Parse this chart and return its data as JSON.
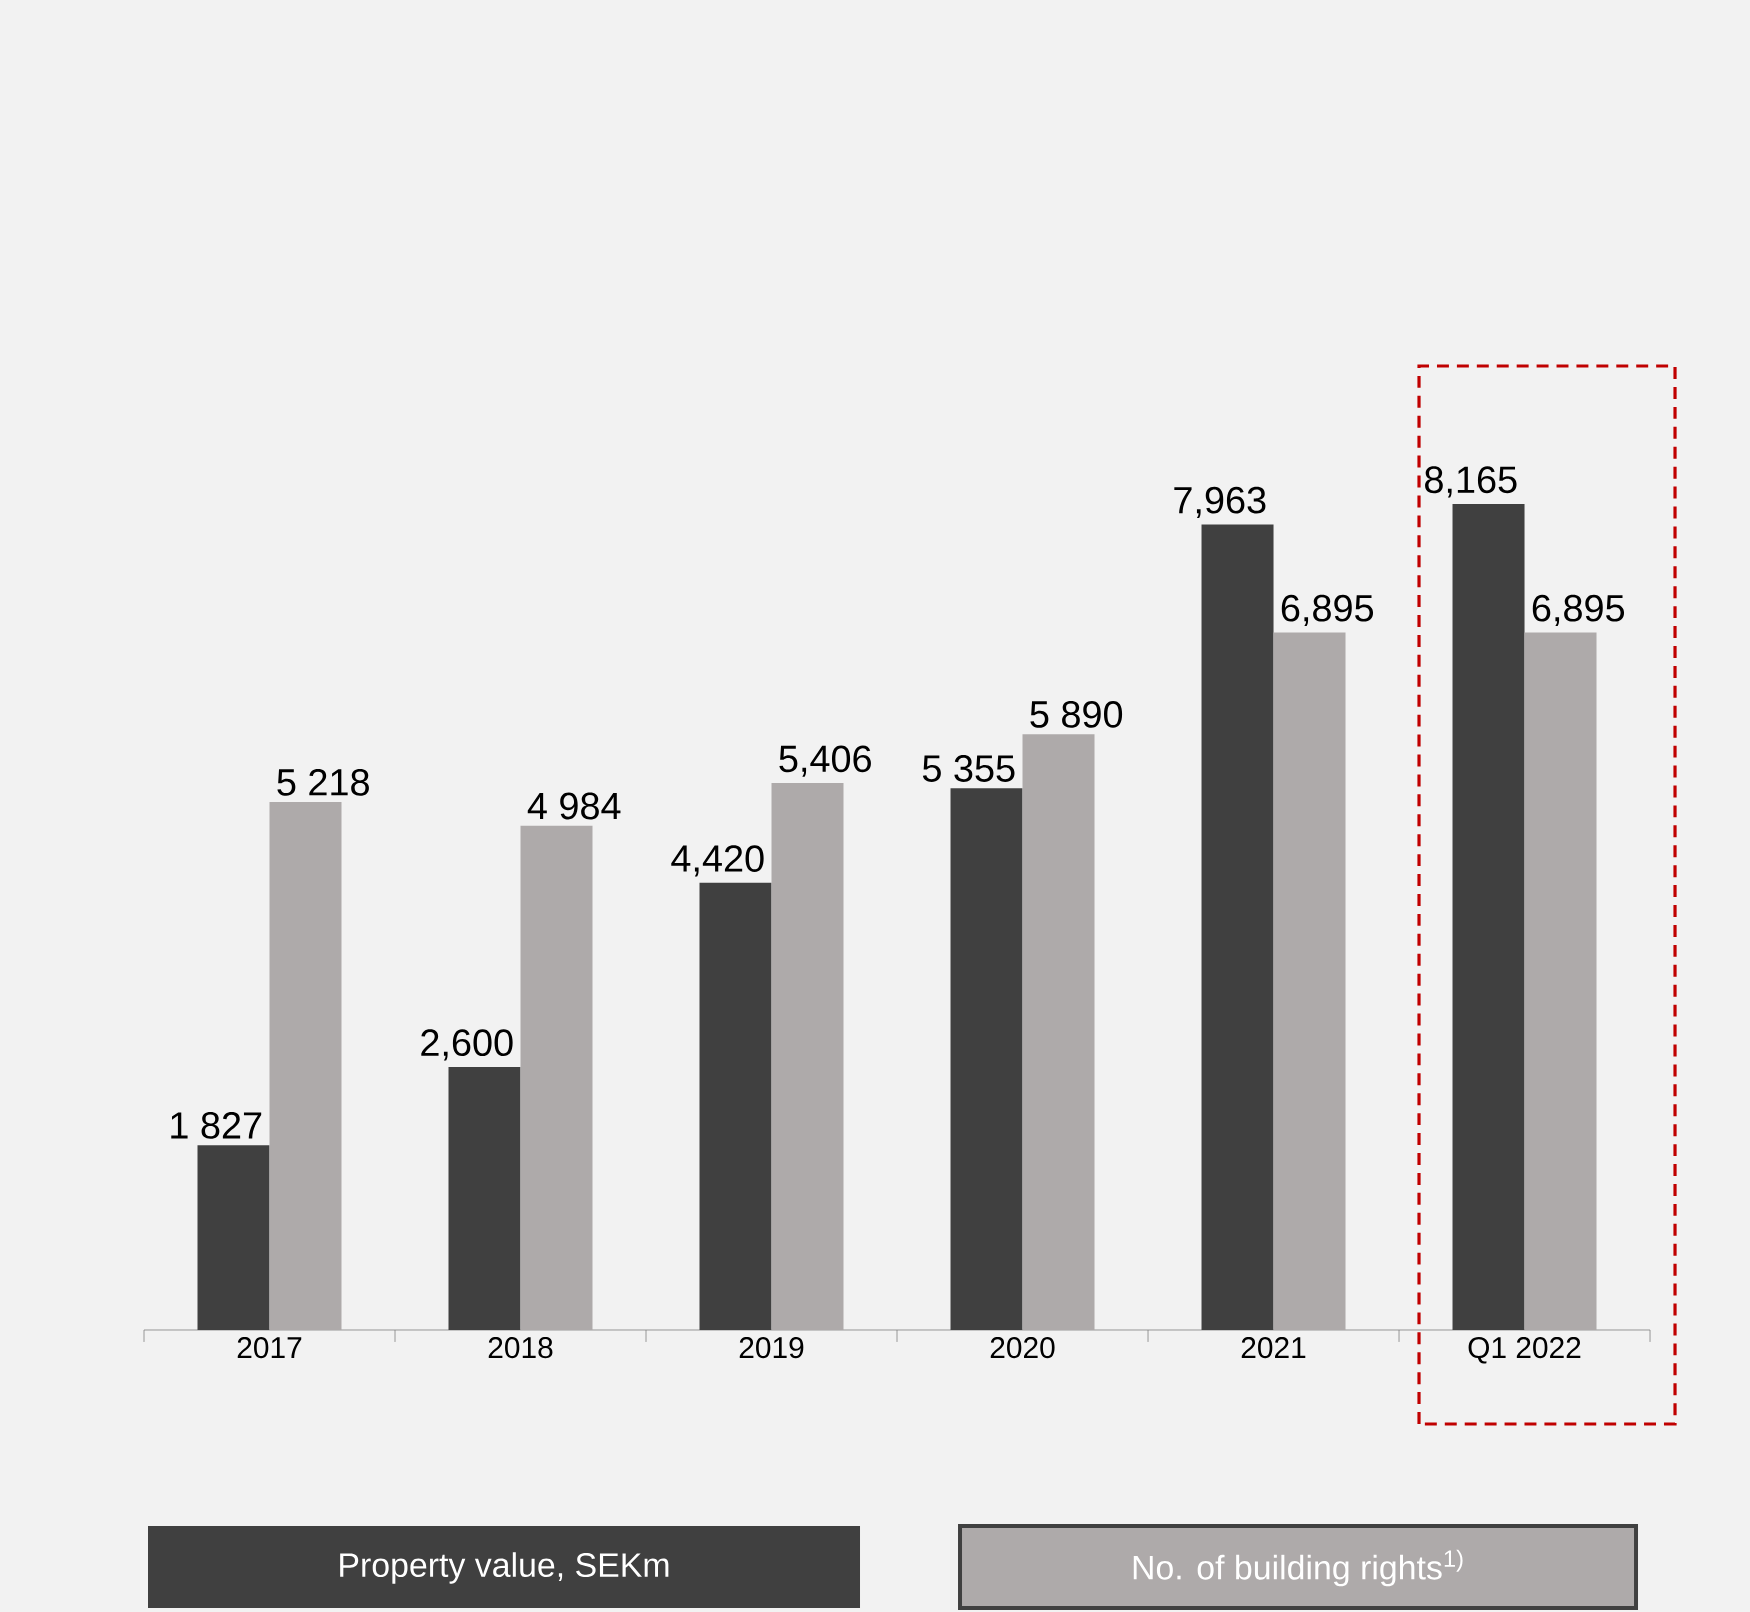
{
  "chart_data": {
    "type": "bar",
    "categories": [
      "2017",
      "2018",
      "2019",
      "2020",
      "2021",
      "Q1 2022"
    ],
    "series": [
      {
        "name": "Property value, SEKm",
        "color": "#404040",
        "values": [
          1827,
          2600,
          4420,
          5355,
          7963,
          8165
        ],
        "value_labels": [
          "1 827",
          "2,600",
          "4,420",
          "5 355",
          "7,963",
          "8,165"
        ]
      },
      {
        "name": "No. of building rights$^{1)}$",
        "color": "#aeaaaa",
        "values": [
          5218,
          4984,
          5406,
          5890,
          6895,
          6895
        ],
        "value_labels": [
          "5 218",
          "4 984",
          "5,406",
          "5 890",
          "6,895",
          "6,895"
        ]
      }
    ],
    "legend": "bottom"
  }
}
